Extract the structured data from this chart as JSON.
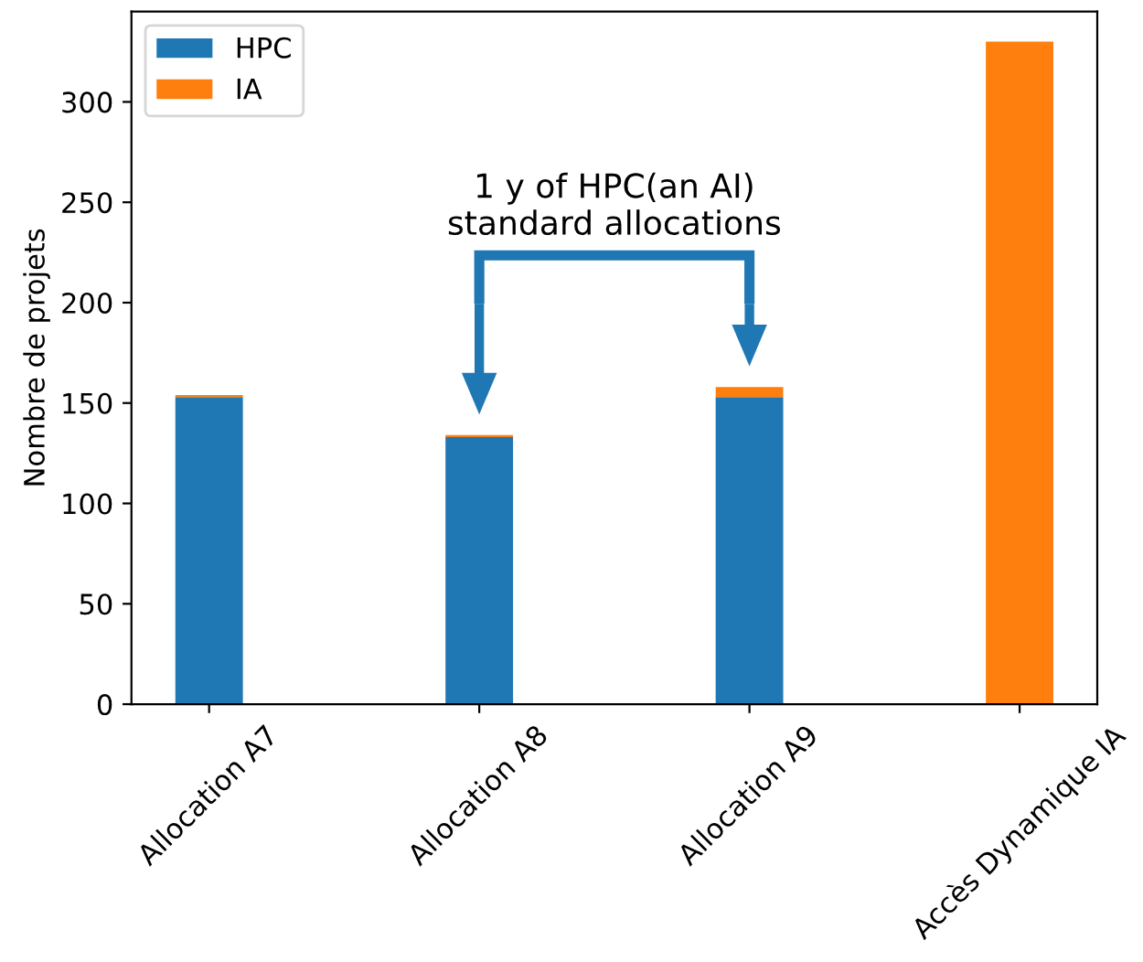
{
  "chart_data": {
    "type": "bar",
    "stacked": true,
    "ylabel": "Nombre de projets",
    "categories": [
      "Allocation A7",
      "Allocation A8",
      "Allocation A9",
      "Accès Dynamique IA"
    ],
    "series": [
      {
        "name": "HPC",
        "color": "#1f77b4",
        "values": [
          153,
          133,
          153,
          0
        ]
      },
      {
        "name": "IA",
        "color": "#ff7f0e",
        "values": [
          1,
          1,
          5,
          330
        ]
      }
    ],
    "ylim": [
      0,
      345
    ],
    "yticks": [
      0,
      50,
      100,
      150,
      200,
      250,
      300
    ],
    "grid": false,
    "legend": "top left",
    "annotations": [
      "1 y of HPC(an AI)\nstandard allocations"
    ]
  }
}
